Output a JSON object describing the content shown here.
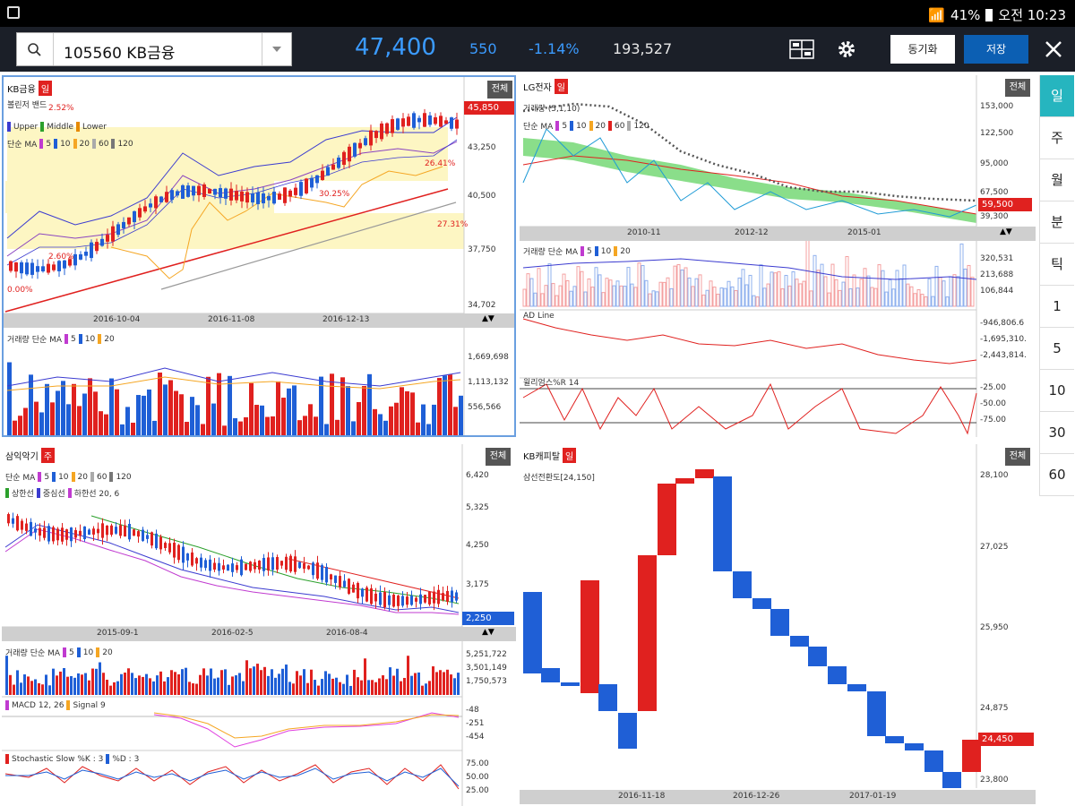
{
  "statusbar": {
    "battery": "41%",
    "time": "오전 10:23"
  },
  "toolbar": {
    "stock_code": "105560 KB금융",
    "price": "47,400",
    "change": "550",
    "change_rate": "-1.14%",
    "volume": "193,527",
    "sync_label": "동기화",
    "save_label": "저장"
  },
  "period_tabs": [
    "일",
    "주",
    "월",
    "분",
    "틱",
    "1",
    "5",
    "10",
    "30",
    "60"
  ],
  "pane1": {
    "title": "KB금융",
    "badge": "일",
    "all_label": "전체",
    "legend_bb_title": "볼린저 밴드",
    "legend_bb": [
      "Upper",
      "Middle",
      "Lower"
    ],
    "legend_ma_title": "단순 MA",
    "legend_ma": [
      "5",
      "10",
      "20",
      "60",
      "120"
    ],
    "price_labels": [
      "43,250",
      "40,500",
      "37,750",
      "34,702"
    ],
    "current_price_tag": "45,850",
    "pct_labels": [
      "2.52%",
      "26.41%",
      "30.25%",
      "27.31%",
      "2.60%",
      "0.00%"
    ],
    "dates": [
      "2016-10-04",
      "2016-11-08",
      "2016-12-13"
    ],
    "vol_legend_title": "거래량 단순 MA",
    "vol_legend": [
      "5",
      "10",
      "20"
    ],
    "vol_labels": [
      "1,669,698",
      "1,113,132",
      "556,566"
    ]
  },
  "pane2": {
    "title": "LG전자",
    "badge": "일",
    "all_label": "전체",
    "legend_title": "거래량 (5,1,10)",
    "legend_ma_title": "단순 MA",
    "legend_ma": [
      "5",
      "10",
      "20",
      "60",
      "120"
    ],
    "price_labels": [
      "153,000",
      "122,500",
      "95,000",
      "67,500",
      "39,300"
    ],
    "current_price_tag": "59,500",
    "dates": [
      "2010-11",
      "2012-12",
      "2015-01"
    ],
    "vol_legend_title": "거래량 단순 MA",
    "vol_legend": [
      "5",
      "10",
      "20"
    ],
    "vol_labels": [
      "320,531",
      "213,688",
      "106,844"
    ],
    "ad_title": "AD Line",
    "ad_labels": [
      "-946,806.6",
      "-1,695,310.",
      "-2,443,814."
    ],
    "wr_title": "윌리엄스%R 14",
    "wr_labels": [
      "-25.00",
      "-50.00",
      "-75.00"
    ]
  },
  "pane3": {
    "title": "삼익악기",
    "badge": "주",
    "all_label": "전체",
    "legend_ma_title": "단순 MA",
    "legend_ma": [
      "5",
      "10",
      "20",
      "60",
      "120"
    ],
    "legend_ich": [
      "상한선",
      "중심선",
      "하한선 20, 6"
    ],
    "price_labels": [
      "6,420",
      "5,325",
      "4,250",
      "3,175"
    ],
    "current_price_tag": "2,250",
    "dates": [
      "2015-09-1",
      "2016-02-5",
      "2016-08-4"
    ],
    "vol_legend_title": "거래량 단순 MA",
    "vol_legend": [
      "5",
      "10",
      "20"
    ],
    "vol_labels": [
      "5,251,722",
      "3,501,149",
      "1,750,573"
    ],
    "macd_legend": [
      "MACD 12, 26",
      "Signal 9"
    ],
    "macd_labels": [
      "-48",
      "-251",
      "-454"
    ],
    "stoch_legend": [
      "Stochastic Slow %K : 3",
      "%D : 3"
    ],
    "stoch_labels": [
      "75.00",
      "50.00",
      "25.00"
    ]
  },
  "pane4": {
    "title": "KB캐피탈",
    "badge": "일",
    "all_label": "전체",
    "legend": "삼선전환도[24,150]",
    "price_labels": [
      "28,100",
      "27,025",
      "25,950",
      "24,875",
      "23,800"
    ],
    "current_price_tag": "24,450",
    "dates": [
      "2016-11-18",
      "2016-12-26",
      "2017-01-19"
    ]
  },
  "colors": {
    "up": "#e0211f",
    "down": "#1f5fd6",
    "accent": "#3b9bff",
    "active_tab": "#26b5bf"
  }
}
